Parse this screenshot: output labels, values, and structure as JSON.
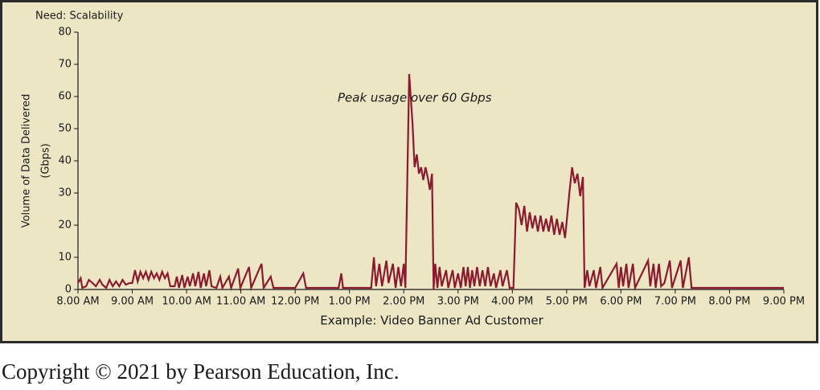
{
  "chart_data": {
    "type": "line",
    "title": "Need: Scalability",
    "annotation": "Peak usage  over 60 Gbps",
    "xlabel": "Example: Video Banner Ad Customer",
    "ylabel": [
      "Volume of  Data Delivered",
      "(Gbps)"
    ],
    "source": "Copyright © 2021 by Pearson Education, Inc.",
    "color": "#8b1a2e",
    "background": "#ece6c4",
    "xlim": [
      8,
      21
    ],
    "ylim": [
      0,
      80
    ],
    "yticks": [
      0,
      10,
      20,
      30,
      40,
      50,
      60,
      70,
      80
    ],
    "xticks": [
      {
        "value": 8,
        "label": "8.00 AM"
      },
      {
        "value": 9,
        "label": "9.00 AM"
      },
      {
        "value": 10,
        "label": "10.00 AM"
      },
      {
        "value": 11,
        "label": "11.00 AM"
      },
      {
        "value": 12,
        "label": "12.00 PM"
      },
      {
        "value": 13,
        "label": "1.00 PM"
      },
      {
        "value": 14,
        "label": "2.00 PM"
      },
      {
        "value": 15,
        "label": "3.00 PM"
      },
      {
        "value": 16,
        "label": "4.00 PM"
      },
      {
        "value": 17,
        "label": "5.00 PM"
      },
      {
        "value": 18,
        "label": "6.00 PM"
      },
      {
        "value": 19,
        "label": "7.00 PM"
      },
      {
        "value": 20,
        "label": "8.00 PM"
      },
      {
        "value": 21,
        "label": "9.00 PM"
      }
    ],
    "x": [
      8.0,
      8.05,
      8.08,
      8.15,
      8.2,
      8.27,
      8.33,
      8.4,
      8.45,
      8.52,
      8.58,
      8.64,
      8.7,
      8.76,
      8.82,
      8.88,
      8.95,
      9.0,
      9.05,
      9.1,
      9.15,
      9.2,
      9.25,
      9.3,
      9.35,
      9.4,
      9.45,
      9.5,
      9.55,
      9.6,
      9.65,
      9.7,
      9.78,
      9.82,
      9.86,
      9.92,
      9.96,
      10.02,
      10.06,
      10.12,
      10.16,
      10.22,
      10.26,
      10.32,
      10.36,
      10.42,
      10.46,
      10.55,
      10.62,
      10.66,
      10.78,
      10.82,
      10.95,
      10.99,
      11.15,
      11.19,
      11.38,
      11.42,
      11.55,
      11.6,
      12.0,
      12.15,
      12.2,
      12.8,
      12.85,
      12.88,
      13.4,
      13.45,
      13.49,
      13.55,
      13.6,
      13.68,
      13.72,
      13.8,
      13.85,
      13.9,
      13.95,
      14.0,
      14.03,
      14.1,
      14.16,
      14.2,
      14.24,
      14.28,
      14.32,
      14.36,
      14.4,
      14.44,
      14.48,
      14.52,
      14.55,
      14.58,
      14.62,
      14.66,
      14.7,
      14.78,
      14.82,
      14.9,
      14.94,
      15.0,
      15.05,
      15.1,
      15.14,
      15.18,
      15.22,
      15.26,
      15.3,
      15.35,
      15.4,
      15.45,
      15.5,
      15.55,
      15.6,
      15.66,
      15.7,
      15.78,
      15.82,
      15.9,
      15.95,
      16.02,
      16.07,
      16.12,
      16.17,
      16.22,
      16.27,
      16.32,
      16.37,
      16.42,
      16.47,
      16.52,
      16.57,
      16.62,
      16.67,
      16.72,
      16.77,
      16.82,
      16.87,
      16.92,
      16.97,
      17.0,
      17.05,
      17.1,
      17.15,
      17.2,
      17.25,
      17.3,
      17.33,
      17.38,
      17.42,
      17.5,
      17.54,
      17.62,
      17.66,
      17.92,
      17.96,
      18.0,
      18.04,
      18.1,
      18.14,
      18.22,
      18.26,
      18.5,
      18.54,
      18.6,
      18.64,
      18.7,
      18.74,
      18.8,
      18.9,
      18.94,
      19.1,
      19.14,
      19.25,
      19.3,
      21.0
    ],
    "values": [
      2,
      3.5,
      0.5,
      1,
      3,
      2,
      1,
      3,
      1.5,
      0.5,
      3,
      1,
      2.5,
      1,
      3,
      1.5,
      2,
      2,
      6,
      2.5,
      5.5,
      3.5,
      5.5,
      3,
      5.5,
      3.5,
      5,
      3,
      5.5,
      3.5,
      5,
      1,
      1,
      4,
      0.5,
      4.5,
      0.5,
      4,
      1,
      5,
      1,
      5.5,
      0.5,
      5,
      1,
      6,
      1,
      0.5,
      4,
      0.5,
      4,
      0.5,
      6.5,
      0.5,
      7,
      0.5,
      8,
      0.5,
      4,
      0.5,
      0.5,
      5,
      0.5,
      0.5,
      5,
      0.5,
      0.5,
      10,
      1,
      8,
      1,
      9,
      2,
      8,
      0.5,
      7,
      1,
      8,
      0.5,
      67,
      52,
      38,
      42,
      36,
      38,
      34,
      38,
      35,
      31,
      36,
      0,
      8,
      0.5,
      7,
      1,
      6,
      0.5,
      6,
      0.5,
      5,
      0.5,
      7,
      1,
      7,
      0.5,
      6,
      1,
      7,
      1,
      6,
      1,
      7,
      1,
      5,
      0.5,
      6,
      1,
      6,
      0.5,
      0.5,
      27,
      25,
      20,
      26,
      18,
      24,
      19,
      23,
      18,
      23,
      18,
      22,
      18,
      23,
      17,
      22,
      17,
      21,
      16,
      21,
      30,
      38,
      33,
      36,
      29,
      35,
      0.5,
      6,
      1,
      6,
      0.5,
      7,
      0.5,
      8,
      0.5,
      7,
      1,
      8,
      0.5,
      8,
      0.5,
      9,
      1,
      8,
      0.5,
      8,
      1,
      2,
      9,
      0.5,
      9,
      0.5,
      10,
      0.5,
      0.5
    ]
  }
}
